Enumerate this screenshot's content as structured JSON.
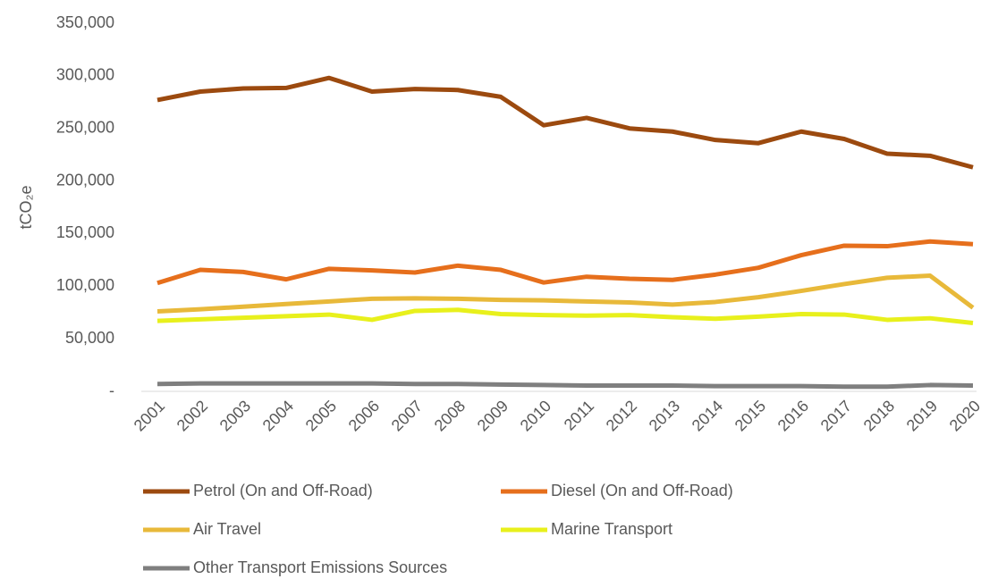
{
  "chart_data": {
    "type": "line",
    "y_label": "tCO₂e",
    "categories": [
      "2001",
      "2002",
      "2003",
      "2004",
      "2005",
      "2006",
      "2007",
      "2008",
      "2009",
      "2010",
      "2011",
      "2012",
      "2013",
      "2014",
      "2015",
      "2016",
      "2017",
      "2018",
      "2019",
      "2020"
    ],
    "series": [
      {
        "name": "Petrol (On and Off-Road)",
        "color": "#9c4a0f",
        "values": [
          277000,
          285000,
          288000,
          288500,
          298000,
          285000,
          287500,
          286500,
          280000,
          253000,
          260000,
          250000,
          247000,
          239000,
          236000,
          247000,
          240000,
          226000,
          224000,
          213000
        ]
      },
      {
        "name": "Diesel (On and Off-Road)",
        "color": "#e66f1c",
        "values": [
          103000,
          115500,
          113500,
          106500,
          116500,
          115000,
          113000,
          119500,
          115500,
          103500,
          109000,
          107000,
          106000,
          111000,
          117500,
          129500,
          138500,
          138000,
          142500,
          140000
        ]
      },
      {
        "name": "Air Travel",
        "color": "#e8b93a",
        "values": [
          76000,
          78000,
          80500,
          83000,
          85500,
          88000,
          88500,
          88000,
          87000,
          86500,
          85500,
          84500,
          82500,
          85000,
          89500,
          95500,
          102000,
          108000,
          110000,
          79500
        ]
      },
      {
        "name": "Marine Transport",
        "color": "#e8f01c",
        "values": [
          67000,
          68500,
          70000,
          71500,
          73000,
          68000,
          76500,
          77500,
          73500,
          72500,
          72000,
          72500,
          70500,
          69000,
          71000,
          73500,
          73000,
          68000,
          69500,
          65000
        ]
      },
      {
        "name": "Other Transport Emissions Sources",
        "color": "#7f7f7f",
        "values": [
          7000,
          7500,
          7500,
          7500,
          7500,
          7500,
          7000,
          7000,
          6500,
          6000,
          5500,
          5500,
          5500,
          5000,
          5000,
          5000,
          4500,
          4500,
          6000,
          5500
        ]
      }
    ],
    "ylim": [
      0,
      350000
    ],
    "yticks": [
      {
        "value": 0,
        "label": "-"
      },
      {
        "value": 50000,
        "label": "50,000"
      },
      {
        "value": 100000,
        "label": "100,000"
      },
      {
        "value": 150000,
        "label": "150,000"
      },
      {
        "value": 200000,
        "label": "200,000"
      },
      {
        "value": 250000,
        "label": "250,000"
      },
      {
        "value": 300000,
        "label": "300,000"
      },
      {
        "value": 350000,
        "label": "350,000"
      }
    ],
    "grid": false
  }
}
